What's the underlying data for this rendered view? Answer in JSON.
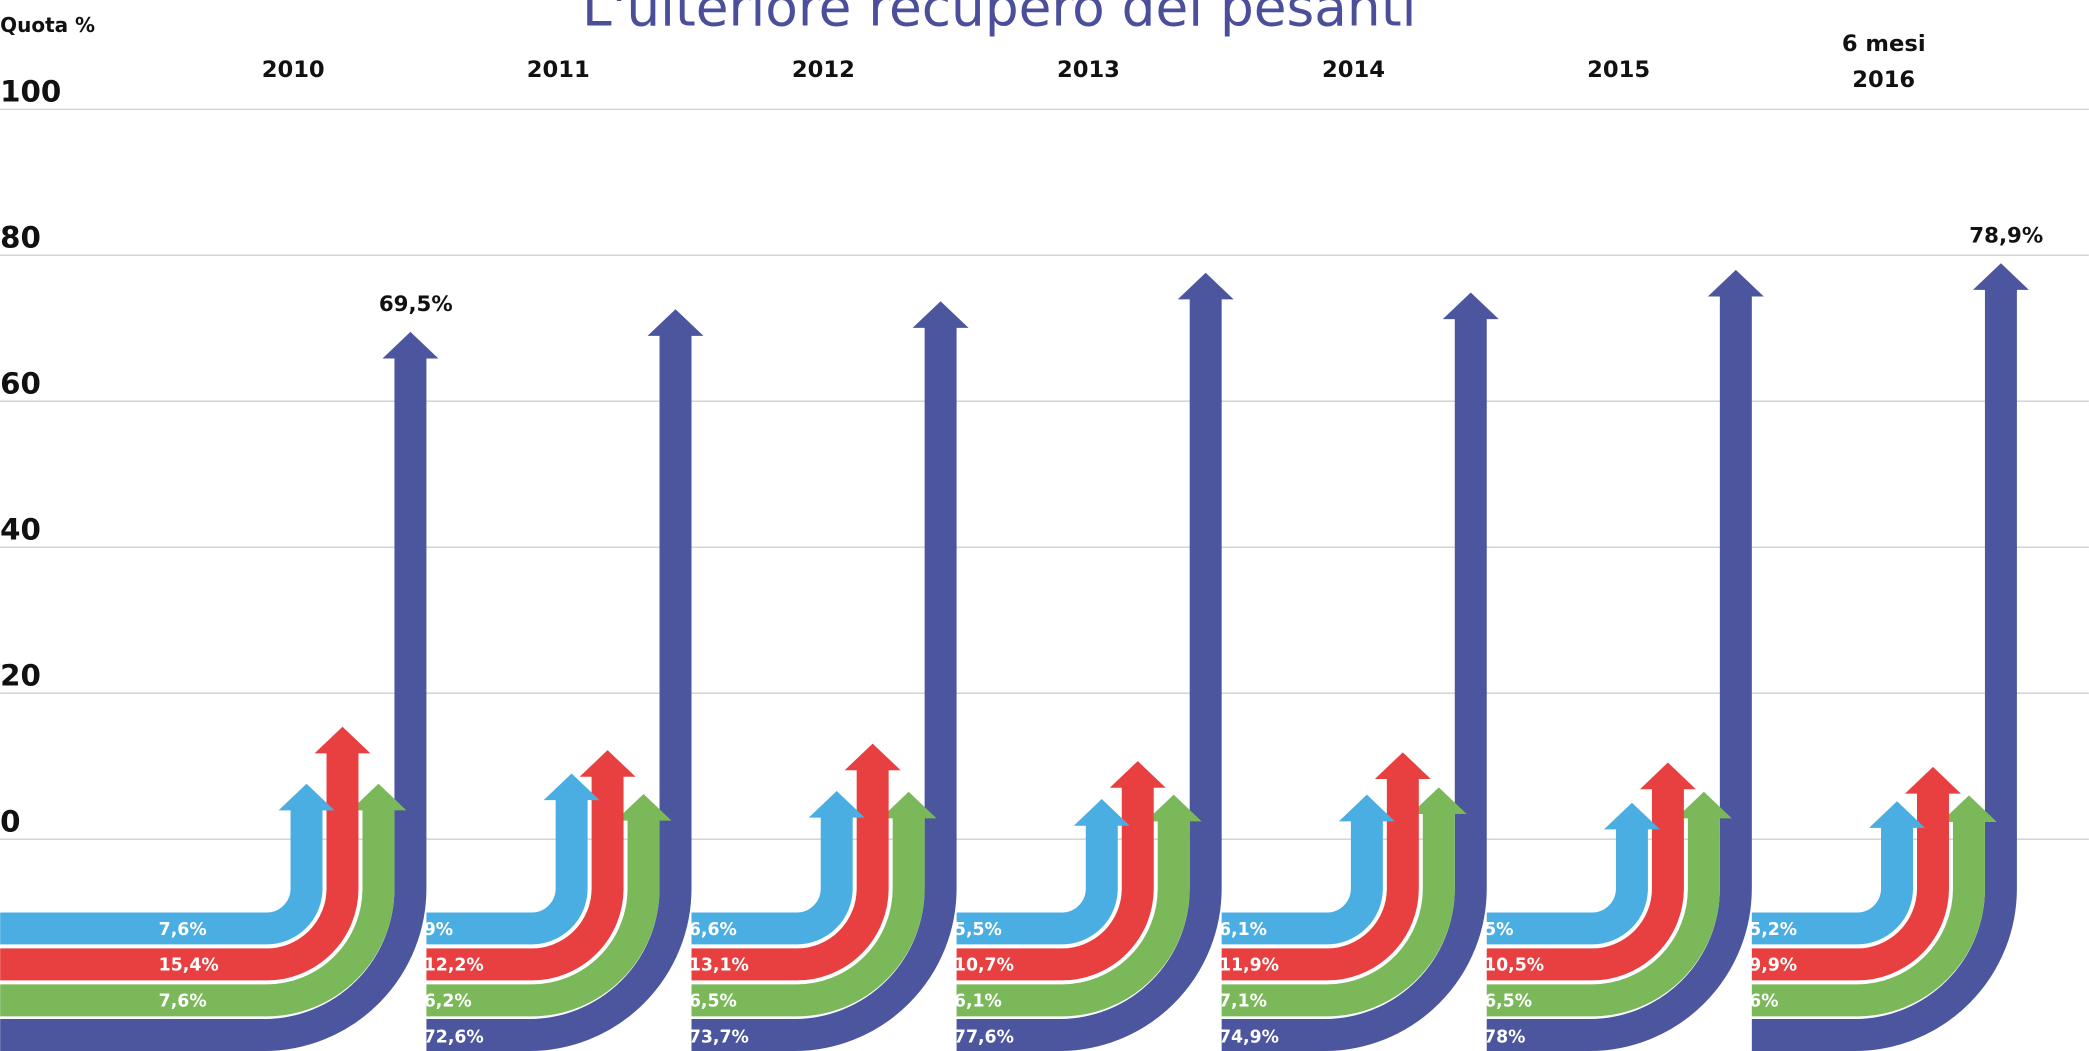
{
  "chart_data": {
    "type": "arrow",
    "title": "L'ulteriore recupero dei pesanti",
    "y_label": "Quota %",
    "categories": [
      "2010",
      "2011",
      "2012",
      "2013",
      "2014",
      "2015",
      "6 mesi\n2016"
    ],
    "ylim": [
      0,
      100
    ],
    "yticks": [
      0,
      20,
      40,
      60,
      80,
      100
    ],
    "grid": true,
    "series": [
      {
        "color": "#4aaee3",
        "values": [
          7.6,
          9,
          6.6,
          5.5,
          6.1,
          5,
          5.2
        ],
        "value_labels": [
          "7,6%",
          "9%",
          "6,6%",
          "5,5%",
          "6,1%",
          "5%",
          "5,2%"
        ]
      },
      {
        "color": "#e84040",
        "values": [
          15.4,
          12.2,
          13.1,
          10.7,
          11.9,
          10.5,
          9.9
        ],
        "value_labels": [
          "15,4%",
          "12,2%",
          "13,1%",
          "10,7%",
          "11,9%",
          "10,5%",
          "9,9%"
        ]
      },
      {
        "color": "#7ab85a",
        "values": [
          7.6,
          6.2,
          6.5,
          6.1,
          7.1,
          6.5,
          6
        ],
        "value_labels": [
          "7,6%",
          "6,2%",
          "6,5%",
          "6,1%",
          "7,1%",
          "6,5%",
          "6%"
        ]
      },
      {
        "color": "#4b569f",
        "values": [
          69.5,
          72.6,
          73.7,
          77.6,
          74.9,
          78,
          78.9
        ],
        "value_labels": [
          "69,5%",
          "72,6%",
          "73,7%",
          "77,6%",
          "74,9%",
          "78%",
          "78,9%"
        ]
      }
    ]
  }
}
